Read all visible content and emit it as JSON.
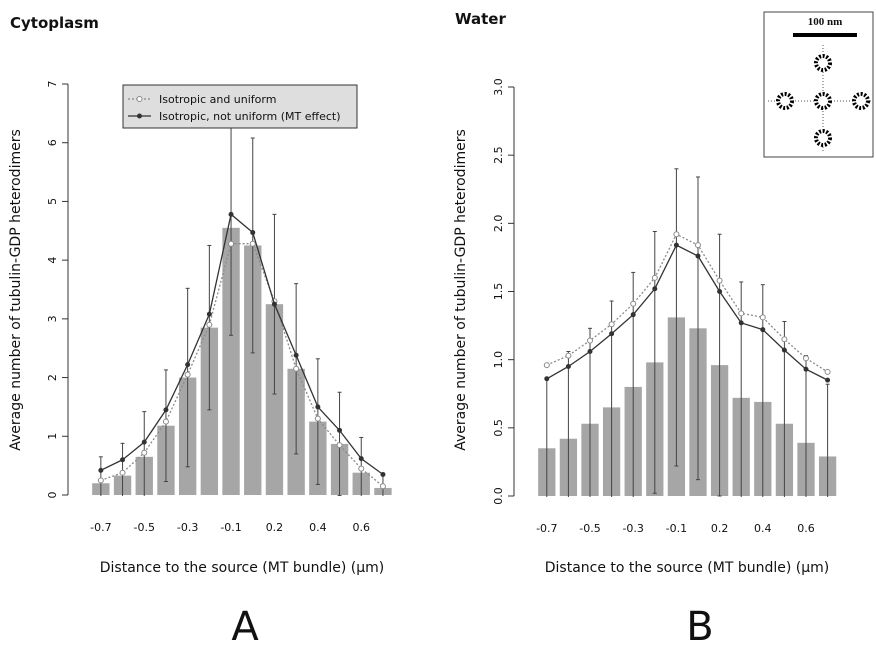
{
  "chart_data": [
    {
      "type": "bar",
      "title": "Cytoplasm",
      "panel_label": "A",
      "xlabel": "Distance to the source (MT bundle) (µm)",
      "ylabel": "Average number of tubulin-GDP heterodimers",
      "categories": [
        "-0.7",
        null,
        "-0.5",
        null,
        "-0.3",
        null,
        "-0.1",
        null,
        "0.2",
        null,
        "0.4",
        null,
        "0.6",
        null
      ],
      "bars": {
        "color": "#a6a6a6",
        "values": [
          0.2,
          0.33,
          0.65,
          1.18,
          2.0,
          2.85,
          4.55,
          4.25,
          3.25,
          2.15,
          1.25,
          0.87,
          0.38,
          0.12
        ],
        "errors": [
          0.45,
          0.55,
          0.77,
          0.95,
          1.52,
          1.4,
          1.83,
          1.83,
          1.53,
          1.45,
          1.07,
          0.88,
          0.6,
          0.23
        ]
      },
      "series": [
        {
          "name": "Isotropic and uniform",
          "color": "#8a8a8a",
          "line_style": "dotted",
          "marker": "open-circle",
          "values": [
            0.25,
            0.38,
            0.72,
            1.25,
            2.05,
            2.9,
            4.28,
            4.28,
            3.3,
            2.15,
            1.3,
            0.85,
            0.45,
            0.15
          ]
        },
        {
          "name": "Isotropic, not uniform (MT effect)",
          "color": "#333333",
          "line_style": "solid",
          "marker": "dot",
          "values": [
            0.42,
            0.6,
            0.9,
            1.45,
            2.22,
            3.08,
            4.78,
            4.47,
            3.25,
            2.38,
            1.5,
            1.1,
            0.62,
            0.35
          ]
        }
      ],
      "ylim": [
        0,
        7
      ],
      "yticks": [
        0,
        1,
        2,
        3,
        4,
        5,
        6,
        7
      ],
      "legend": "top"
    },
    {
      "type": "bar",
      "title": "Water",
      "panel_label": "B",
      "xlabel": "Distance to the source (MT bundle) (µm)",
      "ylabel": "Average number of tubulin-GDP heterodimers",
      "inset_label": "100 nm",
      "categories": [
        "-0.7",
        null,
        "-0.5",
        null,
        "-0.3",
        null,
        "-0.1",
        null,
        "0.2",
        null,
        "0.4",
        null,
        "0.6",
        null
      ],
      "bars": {
        "color": "#a6a6a6",
        "values": [
          0.35,
          0.42,
          0.53,
          0.65,
          0.8,
          0.98,
          1.31,
          1.23,
          0.96,
          0.72,
          0.69,
          0.53,
          0.39,
          0.29
        ],
        "errors": [
          0.52,
          0.64,
          0.7,
          0.78,
          0.84,
          0.96,
          1.09,
          1.11,
          0.96,
          0.85,
          0.86,
          0.75,
          0.64,
          0.53
        ]
      },
      "series": [
        {
          "color": "#8a8a8a",
          "line_style": "dotted",
          "marker": "open-circle",
          "values": [
            0.96,
            1.03,
            1.14,
            1.26,
            1.41,
            1.6,
            1.92,
            1.84,
            1.58,
            1.34,
            1.31,
            1.15,
            1.01,
            0.91
          ]
        },
        {
          "color": "#333333",
          "line_style": "solid",
          "marker": "dot",
          "values": [
            0.86,
            0.95,
            1.06,
            1.19,
            1.33,
            1.52,
            1.84,
            1.76,
            1.5,
            1.27,
            1.22,
            1.07,
            0.93,
            0.85
          ]
        }
      ],
      "ylim": [
        0,
        3
      ],
      "yticks": [
        {
          "value": 0,
          "label": "0.0"
        },
        0.5,
        {
          "value": 1,
          "label": "1.0"
        },
        1.5,
        {
          "value": 2,
          "label": "2.0"
        },
        2.5,
        {
          "value": 3,
          "label": "3.0"
        }
      ]
    }
  ]
}
